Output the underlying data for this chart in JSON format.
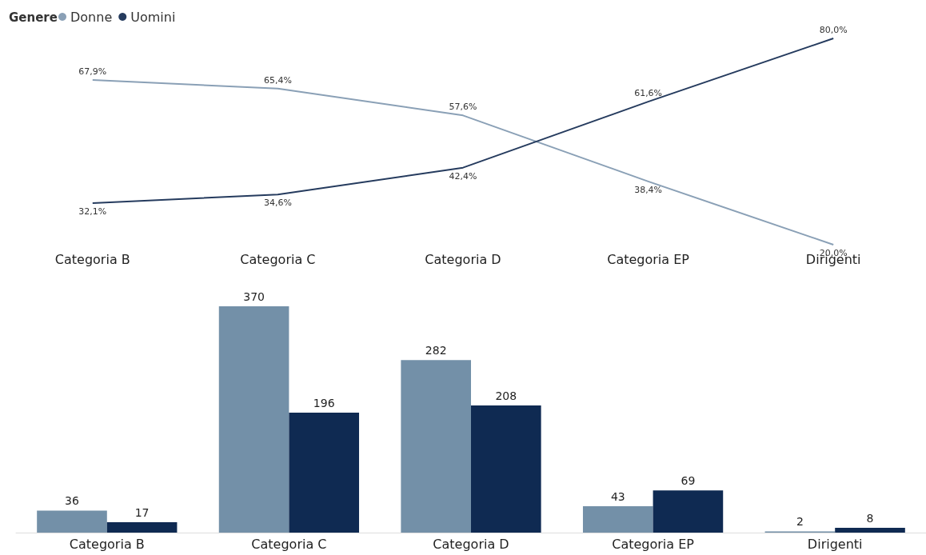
{
  "chart_data": [
    {
      "type": "line",
      "legend_title": "Genere",
      "legend": "top left",
      "categories": [
        "Categoria B",
        "Categoria C",
        "Categoria D",
        "Categoria EP",
        "Dirigenti"
      ],
      "grid": false,
      "marker": "none",
      "series": [
        {
          "name": "Donne",
          "color": "#8aa0b6",
          "values": [
            67.9,
            65.4,
            57.6,
            38.4,
            20.0
          ],
          "value_labels": [
            "67,9%",
            "65,4%",
            "57,6%",
            "38,4%",
            "20,0%"
          ]
        },
        {
          "name": "Uomini",
          "color": "#253b5e",
          "values": [
            32.1,
            34.6,
            42.4,
            61.6,
            80.0
          ],
          "value_labels": [
            "32,1%",
            "34,6%",
            "42,4%",
            "61,6%",
            "80,0%"
          ]
        }
      ]
    },
    {
      "type": "bar",
      "legend": false,
      "grid": false,
      "data_labels": true,
      "categories": [
        "Categoria B",
        "Categoria C",
        "Categoria D",
        "Categoria EP",
        "Dirigenti"
      ],
      "series": [
        {
          "color": "#7390a8",
          "values": [
            36,
            370,
            282,
            43,
            2
          ]
        },
        {
          "color": "#0f2a52",
          "values": [
            17,
            196,
            208,
            69,
            8
          ]
        }
      ]
    }
  ]
}
